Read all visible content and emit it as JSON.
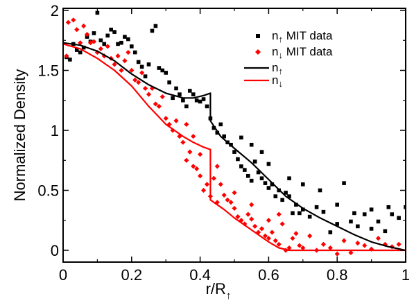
{
  "chart_data": {
    "type": "scatter",
    "title": "",
    "xlabel": "r/R",
    "xlabel_subscript": "↑",
    "ylabel": "Normalized Density",
    "xlim": [
      0,
      1
    ],
    "ylim": [
      -0.1,
      2
    ],
    "xticks": [
      "0",
      "0.2",
      "0.4",
      "0.6",
      "0.8",
      "1"
    ],
    "yticks": [
      "0",
      "0.5",
      "1",
      "1.5",
      "2"
    ],
    "grid": false,
    "legend_position": "top-right",
    "series": [
      {
        "name": "n↑ MIT data",
        "label_main": "n",
        "label_sub": "↑",
        "label_tail": " MIT data",
        "kind": "scatter",
        "marker": "square",
        "color": "#000000",
        "points": [
          [
            0.01,
            1.61
          ],
          [
            0.02,
            1.59
          ],
          [
            0.03,
            1.72
          ],
          [
            0.04,
            1.67
          ],
          [
            0.05,
            1.65
          ],
          [
            0.06,
            1.69
          ],
          [
            0.07,
            1.78
          ],
          [
            0.08,
            1.74
          ],
          [
            0.09,
            1.81
          ],
          [
            0.1,
            1.98
          ],
          [
            0.11,
            1.75
          ],
          [
            0.12,
            1.72
          ],
          [
            0.13,
            1.79
          ],
          [
            0.14,
            1.84
          ],
          [
            0.15,
            1.82
          ],
          [
            0.16,
            1.72
          ],
          [
            0.17,
            1.73
          ],
          [
            0.18,
            1.78
          ],
          [
            0.19,
            1.76
          ],
          [
            0.2,
            1.7
          ],
          [
            0.21,
            1.65
          ],
          [
            0.22,
            1.57
          ],
          [
            0.23,
            1.53
          ],
          [
            0.24,
            1.45
          ],
          [
            0.25,
            1.55
          ],
          [
            0.26,
            1.83
          ],
          [
            0.27,
            1.87
          ],
          [
            0.28,
            1.52
          ],
          [
            0.29,
            1.5
          ],
          [
            0.3,
            1.48
          ],
          [
            0.31,
            1.4
          ],
          [
            0.32,
            1.27
          ],
          [
            0.33,
            1.35
          ],
          [
            0.34,
            1.3
          ],
          [
            0.35,
            1.25
          ],
          [
            0.36,
            1.2
          ],
          [
            0.37,
            1.33
          ],
          [
            0.38,
            1.3
          ],
          [
            0.39,
            1.25
          ],
          [
            0.4,
            1.24
          ],
          [
            0.41,
            1.26
          ],
          [
            0.42,
            1.2
          ],
          [
            0.43,
            1.1
          ],
          [
            0.44,
            1.02
          ],
          [
            0.45,
            0.98
          ],
          [
            0.46,
            1.05
          ],
          [
            0.47,
            0.95
          ],
          [
            0.48,
            0.9
          ],
          [
            0.49,
            0.88
          ],
          [
            0.5,
            0.82
          ],
          [
            0.51,
            0.76
          ],
          [
            0.52,
            0.7
          ],
          [
            0.53,
            0.67
          ],
          [
            0.54,
            0.62
          ],
          [
            0.55,
            0.58
          ],
          [
            0.56,
            0.74
          ],
          [
            0.57,
            0.65
          ],
          [
            0.58,
            0.6
          ],
          [
            0.59,
            0.56
          ],
          [
            0.6,
            0.52
          ],
          [
            0.61,
            0.55
          ],
          [
            0.62,
            0.45
          ],
          [
            0.63,
            0.5
          ],
          [
            0.64,
            0.42
          ],
          [
            0.65,
            0.48
          ],
          [
            0.66,
            0.6
          ],
          [
            0.67,
            0.31
          ],
          [
            0.68,
            0.38
          ],
          [
            0.69,
            0.31
          ],
          [
            0.7,
            0.34
          ],
          [
            0.72,
            0.28
          ],
          [
            0.74,
            0.36
          ],
          [
            0.76,
            0.32
          ],
          [
            0.78,
            0.15
          ],
          [
            0.8,
            0.22
          ],
          [
            0.82,
            0.56
          ],
          [
            0.84,
            0.24
          ],
          [
            0.86,
            0.2
          ],
          [
            0.88,
            0.3
          ],
          [
            0.9,
            0.34
          ],
          [
            0.92,
            0.24
          ],
          [
            0.94,
            0.16
          ],
          [
            0.96,
            0.3
          ],
          [
            0.98,
            0.27
          ],
          [
            1.0,
            0.36
          ],
          [
            0.6,
            0.72
          ],
          [
            0.58,
            0.82
          ],
          [
            0.7,
            0.55
          ],
          [
            0.75,
            0.5
          ],
          [
            0.8,
            0.38
          ],
          [
            0.85,
            0.31
          ],
          [
            0.9,
            0.18
          ],
          [
            0.95,
            0.36
          ],
          [
            0.66,
            0.45
          ],
          [
            0.52,
            0.94
          ],
          [
            0.55,
            0.88
          ]
        ]
      },
      {
        "name": "n↓ MIT data",
        "label_main": "n",
        "label_sub": "↓",
        "label_tail": " MIT data",
        "kind": "scatter",
        "marker": "diamond",
        "color": "#ff0000",
        "points": [
          [
            0.01,
            1.62
          ],
          [
            0.015,
            1.9
          ],
          [
            0.03,
            1.92
          ],
          [
            0.04,
            1.84
          ],
          [
            0.05,
            1.73
          ],
          [
            0.06,
            1.87
          ],
          [
            0.07,
            1.8
          ],
          [
            0.08,
            1.73
          ],
          [
            0.09,
            1.74
          ],
          [
            0.1,
            1.65
          ],
          [
            0.11,
            1.68
          ],
          [
            0.12,
            1.62
          ],
          [
            0.13,
            1.7
          ],
          [
            0.14,
            1.6
          ],
          [
            0.15,
            1.55
          ],
          [
            0.16,
            1.62
          ],
          [
            0.17,
            1.5
          ],
          [
            0.18,
            1.58
          ],
          [
            0.19,
            1.65
          ],
          [
            0.2,
            1.5
          ],
          [
            0.21,
            1.42
          ],
          [
            0.22,
            1.4
          ],
          [
            0.23,
            1.48
          ],
          [
            0.24,
            1.35
          ],
          [
            0.25,
            1.3
          ],
          [
            0.26,
            1.35
          ],
          [
            0.27,
            1.22
          ],
          [
            0.28,
            1.2
          ],
          [
            0.29,
            1.28
          ],
          [
            0.3,
            1.1
          ],
          [
            0.31,
            1.05
          ],
          [
            0.32,
            1.0
          ],
          [
            0.33,
            1.08
          ],
          [
            0.34,
            0.95
          ],
          [
            0.35,
            0.9
          ],
          [
            0.36,
            0.75
          ],
          [
            0.37,
            0.82
          ],
          [
            0.38,
            0.7
          ],
          [
            0.39,
            0.68
          ],
          [
            0.4,
            0.62
          ],
          [
            0.41,
            0.5
          ],
          [
            0.42,
            0.55
          ],
          [
            0.43,
            0.45
          ],
          [
            0.44,
            0.6
          ],
          [
            0.45,
            0.7
          ],
          [
            0.46,
            0.55
          ],
          [
            0.47,
            0.46
          ],
          [
            0.48,
            0.42
          ],
          [
            0.49,
            0.4
          ],
          [
            0.5,
            0.35
          ],
          [
            0.51,
            0.28
          ],
          [
            0.52,
            0.25
          ],
          [
            0.53,
            0.22
          ],
          [
            0.54,
            0.3
          ],
          [
            0.55,
            0.26
          ],
          [
            0.56,
            0.2
          ],
          [
            0.57,
            0.15
          ],
          [
            0.58,
            0.18
          ],
          [
            0.59,
            0.12
          ],
          [
            0.6,
            0.1
          ],
          [
            0.61,
            0.15
          ],
          [
            0.62,
            0.08
          ],
          [
            0.63,
            0.05
          ],
          [
            0.64,
            0.22
          ],
          [
            0.65,
            0.0
          ],
          [
            0.66,
            0.02
          ],
          [
            0.67,
            0.1
          ],
          [
            0.68,
            0.14
          ],
          [
            0.69,
            0.04
          ],
          [
            0.7,
            0.02
          ],
          [
            0.72,
            0.12
          ],
          [
            0.74,
            0.0
          ],
          [
            0.76,
            0.05
          ],
          [
            0.78,
            0.02
          ],
          [
            0.8,
            -0.03
          ],
          [
            0.82,
            0.08
          ],
          [
            0.84,
            -0.02
          ],
          [
            0.86,
            0.06
          ],
          [
            0.88,
            0.04
          ],
          [
            0.9,
            0.01
          ],
          [
            0.92,
            0.1
          ],
          [
            0.94,
            0.05
          ],
          [
            0.96,
            0.03
          ],
          [
            0.98,
            0.05
          ],
          [
            0.45,
            0.4
          ],
          [
            0.5,
            0.48
          ],
          [
            0.55,
            0.38
          ],
          [
            0.38,
            0.95
          ],
          [
            0.36,
            1.05
          ],
          [
            0.4,
            0.8
          ],
          [
            0.6,
            0.25
          ],
          [
            0.63,
            0.3
          ]
        ]
      },
      {
        "name": "n↑",
        "label_main": "n",
        "label_sub": "↑",
        "label_tail": "",
        "kind": "line",
        "color": "#000000",
        "points": [
          [
            0.0,
            1.73
          ],
          [
            0.05,
            1.71
          ],
          [
            0.1,
            1.66
          ],
          [
            0.15,
            1.58
          ],
          [
            0.2,
            1.47
          ],
          [
            0.25,
            1.38
          ],
          [
            0.3,
            1.31
          ],
          [
            0.35,
            1.27
          ],
          [
            0.38,
            1.27
          ],
          [
            0.41,
            1.29
          ],
          [
            0.43,
            1.31
          ],
          [
            0.43,
            1.08
          ],
          [
            0.46,
            0.95
          ],
          [
            0.5,
            0.85
          ],
          [
            0.55,
            0.73
          ],
          [
            0.6,
            0.59
          ],
          [
            0.65,
            0.45
          ],
          [
            0.7,
            0.35
          ],
          [
            0.75,
            0.27
          ],
          [
            0.8,
            0.2
          ],
          [
            0.85,
            0.13
          ],
          [
            0.9,
            0.07
          ],
          [
            0.95,
            0.03
          ],
          [
            1.0,
            0.0
          ]
        ]
      },
      {
        "name": "n↓",
        "label_main": "n",
        "label_sub": "↓",
        "label_tail": "",
        "kind": "line",
        "color": "#ff0000",
        "points": [
          [
            0.0,
            1.72
          ],
          [
            0.05,
            1.68
          ],
          [
            0.1,
            1.6
          ],
          [
            0.15,
            1.5
          ],
          [
            0.2,
            1.37
          ],
          [
            0.25,
            1.2
          ],
          [
            0.3,
            1.05
          ],
          [
            0.35,
            0.95
          ],
          [
            0.38,
            0.9
          ],
          [
            0.41,
            0.86
          ],
          [
            0.43,
            0.84
          ],
          [
            0.43,
            0.42
          ],
          [
            0.47,
            0.34
          ],
          [
            0.5,
            0.27
          ],
          [
            0.55,
            0.17
          ],
          [
            0.6,
            0.07
          ],
          [
            0.63,
            0.02
          ],
          [
            0.66,
            0.0
          ],
          [
            0.7,
            0.0
          ],
          [
            0.8,
            0.0
          ],
          [
            0.9,
            0.0
          ],
          [
            1.0,
            0.0
          ]
        ]
      }
    ]
  }
}
